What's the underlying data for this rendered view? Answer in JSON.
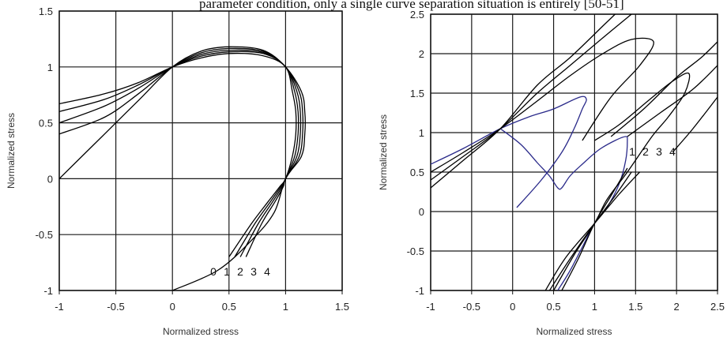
{
  "header": {
    "cut_text": "parameter condition, only a single curve separation situation is entirely [50-51]"
  },
  "chart_data": [
    {
      "type": "line",
      "xlabel": "Normalized stress",
      "ylabel": "Normalized stress",
      "xlim": [
        -1,
        1.5
      ],
      "ylim": [
        -1,
        1.5
      ],
      "xticks": [
        "-1",
        "-0.5",
        "0",
        "0.5",
        "1",
        "1.5"
      ],
      "yticks": [
        "-1",
        "-0.5",
        "0",
        "0.5",
        "1",
        "1.5"
      ],
      "grid": true,
      "curve_labels": [
        "0",
        "1",
        "2",
        "3",
        "4"
      ],
      "series": [
        {
          "color": "#000000",
          "points": [
            [
              0.5,
              -0.7
            ],
            [
              0.7,
              -0.4
            ],
            [
              0.85,
              -0.2
            ],
            [
              0.95,
              -0.07
            ],
            [
              1,
              0
            ],
            [
              1.06,
              0.2
            ],
            [
              1.09,
              0.4
            ],
            [
              1.09,
              0.6
            ],
            [
              1.06,
              0.78
            ],
            [
              1,
              1
            ],
            [
              0.8,
              1.1
            ],
            [
              0.5,
              1.12
            ],
            [
              0.25,
              1.08
            ],
            [
              0,
              1
            ],
            [
              -0.3,
              0.86
            ],
            [
              -0.6,
              0.76
            ],
            [
              -1,
              0.67
            ]
          ]
        },
        {
          "color": "#000000",
          "points": [
            [
              0.55,
              -0.7
            ],
            [
              0.73,
              -0.4
            ],
            [
              0.87,
              -0.2
            ],
            [
              0.96,
              -0.07
            ],
            [
              1,
              0
            ],
            [
              1.08,
              0.2
            ],
            [
              1.11,
              0.4
            ],
            [
              1.11,
              0.6
            ],
            [
              1.08,
              0.78
            ],
            [
              1,
              1
            ],
            [
              0.8,
              1.12
            ],
            [
              0.5,
              1.135
            ],
            [
              0.25,
              1.095
            ],
            [
              0,
              1
            ],
            [
              -0.3,
              0.84
            ],
            [
              -0.6,
              0.71
            ],
            [
              -1,
              0.6
            ]
          ]
        },
        {
          "color": "#000000",
          "points": [
            [
              0.6,
              -0.7
            ],
            [
              0.76,
              -0.4
            ],
            [
              0.89,
              -0.2
            ],
            [
              0.97,
              -0.07
            ],
            [
              1,
              0
            ],
            [
              1.1,
              0.2
            ],
            [
              1.13,
              0.4
            ],
            [
              1.13,
              0.6
            ],
            [
              1.1,
              0.78
            ],
            [
              1,
              1
            ],
            [
              0.8,
              1.13
            ],
            [
              0.5,
              1.15
            ],
            [
              0.25,
              1.11
            ],
            [
              0,
              1
            ],
            [
              -0.3,
              0.81
            ],
            [
              -0.6,
              0.65
            ],
            [
              -1,
              0.5
            ]
          ]
        },
        {
          "color": "#000000",
          "points": [
            [
              0.65,
              -0.7
            ],
            [
              0.79,
              -0.4
            ],
            [
              0.91,
              -0.2
            ],
            [
              0.98,
              -0.07
            ],
            [
              1,
              0
            ],
            [
              1.12,
              0.2
            ],
            [
              1.15,
              0.4
            ],
            [
              1.15,
              0.6
            ],
            [
              1.12,
              0.78
            ],
            [
              1,
              1
            ],
            [
              0.8,
              1.14
            ],
            [
              0.5,
              1.165
            ],
            [
              0.25,
              1.125
            ],
            [
              0,
              1
            ],
            [
              -0.3,
              0.76
            ],
            [
              -0.6,
              0.55
            ],
            [
              -1,
              0.4
            ]
          ]
        },
        {
          "color": "#000000",
          "points": [
            [
              0,
              -1
            ],
            [
              0.4,
              -0.82
            ],
            [
              0.7,
              -0.55
            ],
            [
              0.9,
              -0.3
            ],
            [
              1,
              0
            ],
            [
              1.14,
              0.2
            ],
            [
              1.17,
              0.4
            ],
            [
              1.17,
              0.6
            ],
            [
              1.14,
              0.78
            ],
            [
              1,
              1
            ],
            [
              0.8,
              1.15
            ],
            [
              0.5,
              1.18
            ],
            [
              0.25,
              1.14
            ],
            [
              0,
              1
            ],
            [
              -0.3,
              0.7
            ],
            [
              -0.6,
              0.4
            ],
            [
              -1,
              0
            ]
          ]
        }
      ]
    },
    {
      "type": "line",
      "xlabel": "Normalized stress",
      "ylabel": "Normalized stress",
      "xlim": [
        -1,
        2.5
      ],
      "ylim": [
        -1,
        2.5
      ],
      "xticks": [
        "-1",
        "-0.5",
        "0",
        "0.5",
        "1",
        "1.5",
        "2",
        "2.5"
      ],
      "yticks": [
        "-1",
        "-0.5",
        "0",
        "0.5",
        "1",
        "1.5",
        "2",
        "2.5"
      ],
      "grid": true,
      "curve_labels": [
        "1",
        "2",
        "3",
        "4"
      ],
      "series": [
        {
          "color": "#2a2a8a",
          "points": [
            [
              0.05,
              0.05
            ],
            [
              0.35,
              0.4
            ],
            [
              0.6,
              0.75
            ],
            [
              0.75,
              1.05
            ],
            [
              0.85,
              1.3
            ],
            [
              0.9,
              1.42
            ],
            [
              0.82,
              1.45
            ],
            [
              0.5,
              1.3
            ],
            [
              0.2,
              1.2
            ],
            [
              -0.15,
              1.05
            ],
            [
              -0.6,
              0.8
            ],
            [
              -1,
              0.6
            ]
          ]
        },
        {
          "color": "#2a2a8a",
          "points": [
            [
              -0.15,
              1.05
            ],
            [
              0.1,
              0.85
            ],
            [
              0.3,
              0.62
            ],
            [
              0.45,
              0.45
            ],
            [
              0.55,
              0.3
            ],
            [
              0.6,
              0.3
            ],
            [
              0.7,
              0.45
            ],
            [
              0.85,
              0.6
            ],
            [
              1.05,
              0.78
            ],
            [
              1.25,
              0.9
            ],
            [
              1.38,
              0.95
            ],
            [
              1.4,
              0.9
            ],
            [
              1.38,
              0.65
            ],
            [
              1.3,
              0.35
            ],
            [
              1.15,
              0.05
            ],
            [
              1,
              -0.15
            ],
            [
              0.85,
              -0.45
            ],
            [
              0.7,
              -0.75
            ],
            [
              0.55,
              -1
            ]
          ]
        },
        {
          "color": "#000000",
          "points": [
            [
              -1,
              0.5
            ],
            [
              -0.6,
              0.75
            ],
            [
              -0.15,
              1.05
            ],
            [
              0.3,
              1.4
            ],
            [
              0.7,
              1.72
            ],
            [
              1.1,
              2.0
            ],
            [
              1.45,
              2.18
            ],
            [
              1.72,
              2.15
            ],
            [
              1.55,
              1.85
            ],
            [
              1.2,
              1.45
            ],
            [
              0.85,
              0.9
            ]
          ]
        },
        {
          "color": "#000000",
          "points": [
            [
              -1,
              0.4
            ],
            [
              -0.6,
              0.7
            ],
            [
              -0.15,
              1.05
            ],
            [
              0.3,
              1.5
            ],
            [
              0.7,
              1.85
            ],
            [
              1.1,
              2.2
            ],
            [
              1.45,
              2.5
            ]
          ]
        },
        {
          "color": "#000000",
          "points": [
            [
              -1,
              0.3
            ],
            [
              -0.6,
              0.65
            ],
            [
              -0.15,
              1.05
            ],
            [
              0.3,
              1.6
            ],
            [
              0.7,
              1.95
            ],
            [
              1.1,
              2.35
            ],
            [
              1.25,
              2.5
            ]
          ]
        },
        {
          "color": "#000000",
          "points": [
            [
              1.0,
              0.9
            ],
            [
              1.3,
              1.1
            ],
            [
              1.65,
              1.4
            ],
            [
              1.95,
              1.65
            ],
            [
              2.15,
              1.75
            ],
            [
              2.1,
              1.5
            ],
            [
              1.9,
              1.2
            ],
            [
              1.7,
              0.95
            ],
            [
              1.4,
              0.5
            ],
            [
              1.15,
              0.15
            ],
            [
              1,
              -0.15
            ],
            [
              0.75,
              -0.55
            ],
            [
              0.5,
              -1
            ]
          ]
        },
        {
          "color": "#000000",
          "points": [
            [
              1.2,
              0.95
            ],
            [
              1.6,
              1.3
            ],
            [
              2.0,
              1.7
            ],
            [
              2.3,
              1.95
            ],
            [
              2.5,
              2.15
            ]
          ]
        },
        {
          "color": "#000000",
          "points": [
            [
              1.4,
              0.95
            ],
            [
              1.8,
              1.25
            ],
            [
              2.2,
              1.55
            ],
            [
              2.5,
              1.85
            ]
          ]
        },
        {
          "color": "#000000",
          "points": [
            [
              1.95,
              0.75
            ],
            [
              2.2,
              1.05
            ],
            [
              2.5,
              1.45
            ]
          ]
        },
        {
          "color": "#000000",
          "points": [
            [
              0.45,
              -1
            ],
            [
              0.7,
              -0.6
            ],
            [
              1,
              -0.15
            ],
            [
              1.25,
              0.2
            ],
            [
              1.45,
              0.5
            ]
          ]
        },
        {
          "color": "#000000",
          "points": [
            [
              0.4,
              -1
            ],
            [
              0.65,
              -0.58
            ],
            [
              1,
              -0.15
            ],
            [
              1.3,
              0.22
            ],
            [
              1.55,
              0.5
            ]
          ]
        },
        {
          "color": "#000000",
          "points": [
            [
              0.6,
              -1
            ],
            [
              0.8,
              -0.6
            ],
            [
              1,
              -0.15
            ],
            [
              1.2,
              0.2
            ],
            [
              1.4,
              0.55
            ]
          ]
        }
      ]
    }
  ]
}
